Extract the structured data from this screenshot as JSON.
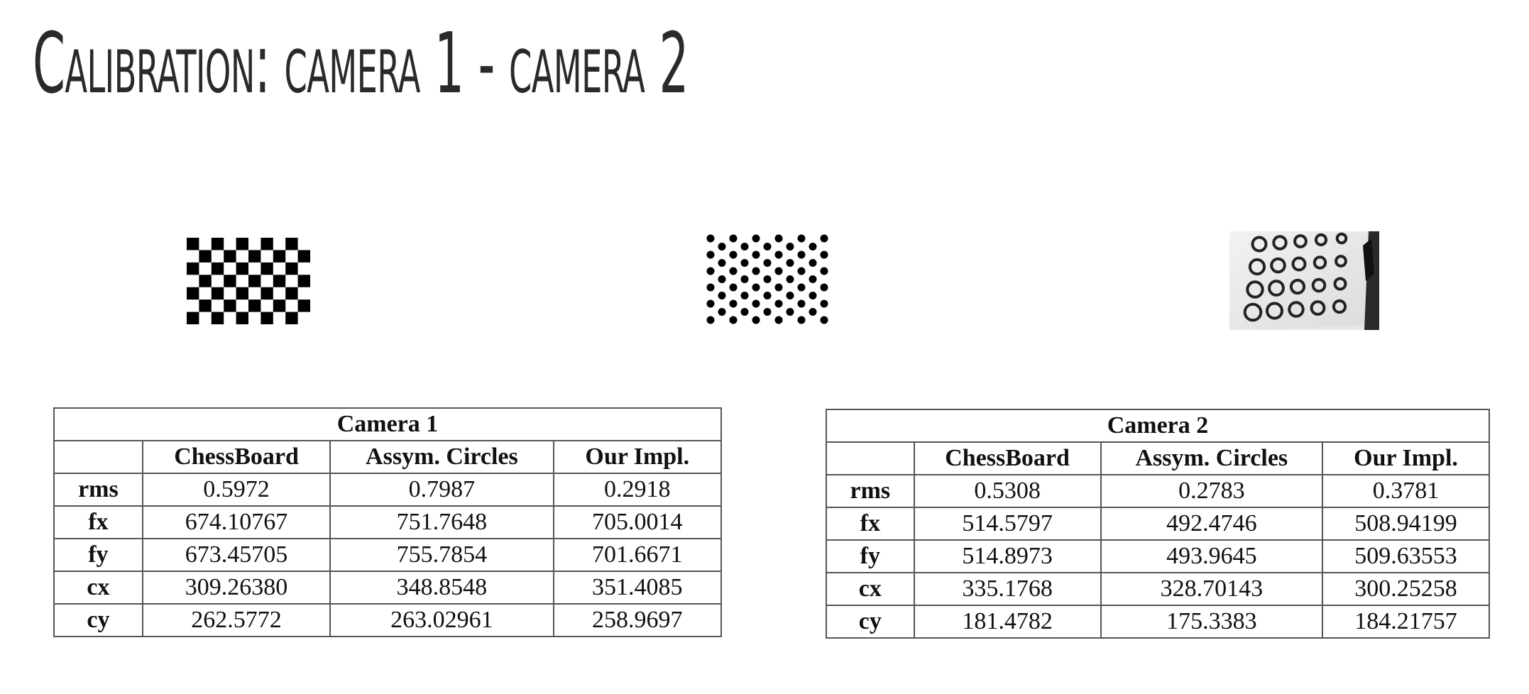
{
  "title": "Calibration: camera 1 - camera 2",
  "patterns": {
    "chessboard": "chessboard-pattern",
    "asym_circles": "asymmetric-circles-pattern",
    "photo": "photographed-circles-pattern"
  },
  "tables": [
    {
      "caption": "Camera 1",
      "columns": [
        "",
        "ChessBoard",
        "Assym. Circles",
        "Our Impl."
      ],
      "rows": [
        {
          "label": "rms",
          "values": [
            "0.5972",
            "0.7987",
            "0.2918"
          ]
        },
        {
          "label": "fx",
          "values": [
            "674.10767",
            "751.7648",
            "705.0014"
          ]
        },
        {
          "label": "fy",
          "values": [
            "673.45705",
            "755.7854",
            "701.6671"
          ]
        },
        {
          "label": "cx",
          "values": [
            "309.26380",
            "348.8548",
            "351.4085"
          ]
        },
        {
          "label": "cy",
          "values": [
            "262.5772",
            "263.02961",
            "258.9697"
          ]
        }
      ]
    },
    {
      "caption": "Camera 2",
      "columns": [
        "",
        "ChessBoard",
        "Assym. Circles",
        "Our Impl."
      ],
      "rows": [
        {
          "label": "rms",
          "values": [
            "0.5308",
            "0.2783",
            "0.3781"
          ]
        },
        {
          "label": "fx",
          "values": [
            "514.5797",
            "492.4746",
            "508.94199"
          ]
        },
        {
          "label": "fy",
          "values": [
            "514.8973",
            "493.9645",
            "509.63553"
          ]
        },
        {
          "label": "cx",
          "values": [
            "335.1768",
            "328.70143",
            "300.25258"
          ]
        },
        {
          "label": "cy",
          "values": [
            "181.4782",
            "175.3383",
            "184.21757"
          ]
        }
      ]
    }
  ]
}
